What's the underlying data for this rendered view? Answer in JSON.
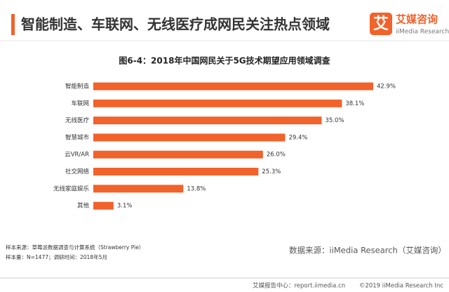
{
  "header": {
    "title": "智能制造、车联网、无线医疗成网民关注热点领域"
  },
  "logo": {
    "mark": "艾",
    "name": "艾媒咨询",
    "sub": "iiMedia Research"
  },
  "chart_data": {
    "type": "bar",
    "orientation": "horizontal",
    "title": "图6-4：2018年中国网民关于5G技术期望应用领域调查",
    "categories": [
      "智能制造",
      "车联网",
      "无线医疗",
      "智慧城市",
      "云VR/AR",
      "社交网络",
      "无线家庭娱乐",
      "其他"
    ],
    "values": [
      42.9,
      38.1,
      35.0,
      29.4,
      26.0,
      25.3,
      13.8,
      3.1
    ],
    "value_labels": [
      "42.9%",
      "38.1%",
      "35.0%",
      "29.4%",
      "26.0%",
      "25.3%",
      "13.8%",
      "3.1%"
    ],
    "color": "#f2622b"
  },
  "notes": {
    "source": "样本来源：草莓派数据调查与计算系统（Strawberry  Pie）",
    "sample": "样本量：N=1477；调研时间：2018年5月",
    "data_source": "数据来源：iiMedia Research（艾媒咨询）"
  },
  "footer": {
    "left": "艾媒报告中心：report.iimedia.cn",
    "right": "©2019  iiMedia Research  Inc"
  }
}
